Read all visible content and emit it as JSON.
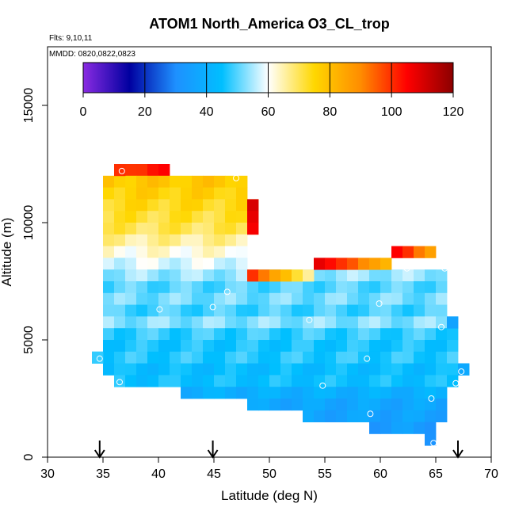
{
  "chart_data": {
    "type": "heatmap",
    "title": "ATOM1 North_America O3_CL_trop",
    "subtitle_flights": "Flts: 9,10,11",
    "subtitle_dates": "MMDD: 0820,0822,0823",
    "xlabel": "Latitude (deg N)",
    "ylabel": "Altitude (m)",
    "xlim": [
      30,
      70
    ],
    "ylim": [
      0,
      17500
    ],
    "xticks": [
      "30",
      "35",
      "40",
      "45",
      "50",
      "55",
      "60",
      "65",
      "70"
    ],
    "yticks": [
      "0",
      "5000",
      "10000",
      "15000"
    ],
    "colorbar": {
      "min": 0,
      "max": 120,
      "ticks": [
        "0",
        "20",
        "40",
        "60",
        "80",
        "100",
        "120"
      ],
      "colors": [
        "#8a2be2",
        "#0000a0",
        "#1e90ff",
        "#00bfff",
        "#ffffff",
        "#ffd700",
        "#ff8c00",
        "#ff0000",
        "#8b0000"
      ]
    },
    "cell_size": {
      "dlat": 1.0,
      "dalt": 500
    },
    "rows": [
      {
        "alt": 12250,
        "lat_start": 36.0,
        "lat_end": 41.0,
        "value": 102
      },
      {
        "alt": 11750,
        "lat_start": 35.0,
        "lat_end": 48.0,
        "value": 78
      },
      {
        "alt": 11250,
        "lat_start": 35.0,
        "lat_end": 48.0,
        "value": 76
      },
      {
        "alt": 10750,
        "lat_start": 35.0,
        "lat_end": 49.0,
        "value": 74
      },
      {
        "alt": 10250,
        "lat_start": 35.0,
        "lat_end": 49.0,
        "value": 72
      },
      {
        "alt": 9750,
        "lat_start": 35.0,
        "lat_end": 49.0,
        "value": 70
      },
      {
        "alt": 9250,
        "lat_start": 35.0,
        "lat_end": 48.0,
        "value": 66
      },
      {
        "alt": 8750,
        "lat_start": 35.0,
        "lat_end": 48.0,
        "value": 62
      },
      {
        "alt": 8250,
        "lat_start": 35.0,
        "lat_end": 48.0,
        "value": 58
      },
      {
        "alt": 7750,
        "lat_start": 35.0,
        "lat_end": 66.0,
        "value": 54
      },
      {
        "alt": 7250,
        "lat_start": 35.0,
        "lat_end": 66.0,
        "value": 50
      },
      {
        "alt": 6750,
        "lat_start": 35.0,
        "lat_end": 66.0,
        "value": 52
      },
      {
        "alt": 6250,
        "lat_start": 35.0,
        "lat_end": 66.0,
        "value": 49
      },
      {
        "alt": 5750,
        "lat_start": 35.0,
        "lat_end": 67.0,
        "value": 53
      },
      {
        "alt": 5250,
        "lat_start": 35.0,
        "lat_end": 67.0,
        "value": 48
      },
      {
        "alt": 4750,
        "lat_start": 35.0,
        "lat_end": 67.0,
        "value": 46
      },
      {
        "alt": 4250,
        "lat_start": 34.0,
        "lat_end": 67.0,
        "value": 47
      },
      {
        "alt": 3750,
        "lat_start": 35.0,
        "lat_end": 68.0,
        "value": 44
      },
      {
        "alt": 3250,
        "lat_start": 36.0,
        "lat_end": 67.0,
        "value": 45
      },
      {
        "alt": 2750,
        "lat_start": 42.0,
        "lat_end": 66.0,
        "value": 40
      },
      {
        "alt": 2250,
        "lat_start": 48.0,
        "lat_end": 66.0,
        "value": 37
      },
      {
        "alt": 1750,
        "lat_start": 53.0,
        "lat_end": 66.0,
        "value": 36
      },
      {
        "alt": 1250,
        "lat_start": 59.0,
        "lat_end": 65.0,
        "value": 34
      },
      {
        "alt": 750,
        "lat_start": 64.0,
        "lat_end": 65.0,
        "value": 33
      }
    ],
    "extra_cells": [
      {
        "lat": 48.0,
        "alt": 10750,
        "value": 110
      },
      {
        "lat": 48.0,
        "alt": 10250,
        "value": 108
      },
      {
        "lat": 48.0,
        "alt": 9750,
        "value": 106
      },
      {
        "lat": 48.0,
        "alt": 7750,
        "value": 100
      },
      {
        "lat": 49.0,
        "alt": 7750,
        "value": 92
      },
      {
        "lat": 50.0,
        "alt": 7750,
        "value": 85
      },
      {
        "lat": 51.0,
        "alt": 7750,
        "value": 80
      },
      {
        "lat": 52.0,
        "alt": 7750,
        "value": 72
      },
      {
        "lat": 53.0,
        "alt": 7750,
        "value": 66
      },
      {
        "lat": 54.0,
        "alt": 8250,
        "value": 108
      },
      {
        "lat": 55.0,
        "alt": 8250,
        "value": 104
      },
      {
        "lat": 56.0,
        "alt": 8250,
        "value": 100
      },
      {
        "lat": 57.0,
        "alt": 8250,
        "value": 96
      },
      {
        "lat": 58.0,
        "alt": 8250,
        "value": 90
      },
      {
        "lat": 59.0,
        "alt": 8250,
        "value": 86
      },
      {
        "lat": 60.0,
        "alt": 8250,
        "value": 82
      },
      {
        "lat": 61.0,
        "alt": 8750,
        "value": 105
      },
      {
        "lat": 62.0,
        "alt": 8750,
        "value": 100
      },
      {
        "lat": 63.0,
        "alt": 8750,
        "value": 92
      },
      {
        "lat": 64.0,
        "alt": 8750,
        "value": 86
      },
      {
        "lat": 34.0,
        "alt": 4250,
        "value": 48
      },
      {
        "lat": 67.0,
        "alt": 3750,
        "value": 38
      },
      {
        "lat": 66.0,
        "alt": 5750,
        "value": 36
      },
      {
        "lat": 36.0,
        "alt": 12250,
        "value": 100
      }
    ],
    "sample_points": [
      {
        "lat": 36.7,
        "alt": 12200
      },
      {
        "lat": 47.0,
        "alt": 11900
      },
      {
        "lat": 62.4,
        "alt": 8050
      },
      {
        "lat": 65.8,
        "alt": 8050
      },
      {
        "lat": 46.2,
        "alt": 7050
      },
      {
        "lat": 59.9,
        "alt": 6550
      },
      {
        "lat": 40.1,
        "alt": 6300
      },
      {
        "lat": 44.9,
        "alt": 6400
      },
      {
        "lat": 53.6,
        "alt": 5850
      },
      {
        "lat": 65.5,
        "alt": 5550
      },
      {
        "lat": 34.7,
        "alt": 4200
      },
      {
        "lat": 58.8,
        "alt": 4200
      },
      {
        "lat": 67.3,
        "alt": 3650
      },
      {
        "lat": 36.5,
        "alt": 3200
      },
      {
        "lat": 54.8,
        "alt": 3050
      },
      {
        "lat": 66.8,
        "alt": 3150
      },
      {
        "lat": 64.6,
        "alt": 2500
      },
      {
        "lat": 59.1,
        "alt": 1850
      },
      {
        "lat": 64.8,
        "alt": 600
      }
    ],
    "flight_markers_lat": [
      34.7,
      44.9,
      67.0
    ]
  }
}
